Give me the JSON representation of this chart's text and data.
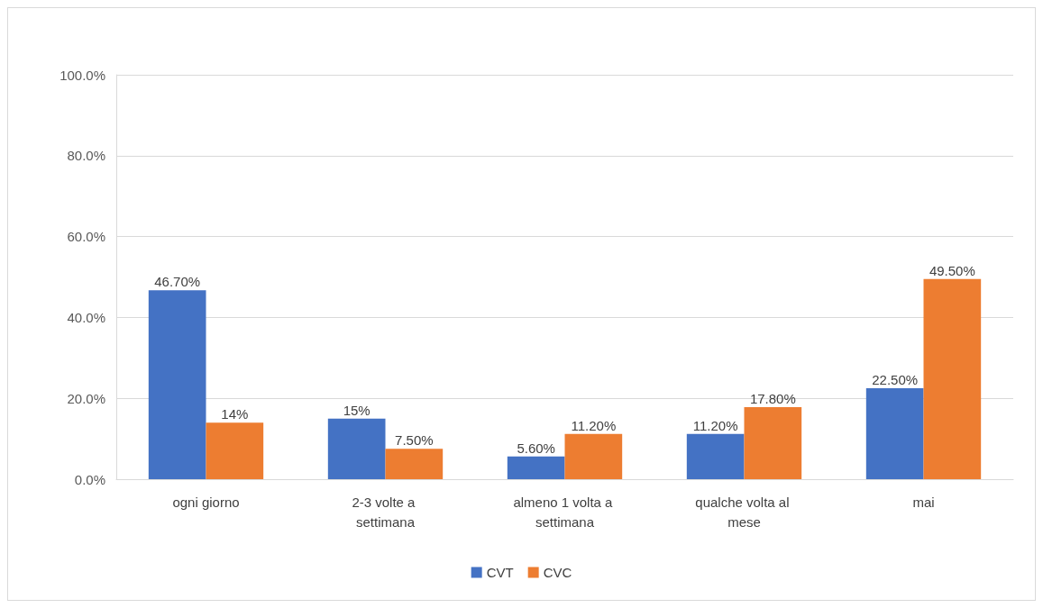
{
  "chart_data": {
    "type": "bar",
    "categories": [
      "ogni giorno",
      "2-3 volte a settimana",
      "almeno 1 volta a settimana",
      "qualche volta al mese",
      "mai"
    ],
    "series": [
      {
        "name": "CVT",
        "color": "#4472c4",
        "values": [
          46.7,
          15,
          5.6,
          11.2,
          22.5
        ],
        "value_labels": [
          "46.70%",
          "15%",
          "5.60%",
          "11.20%",
          "22.50%"
        ]
      },
      {
        "name": "CVC",
        "color": "#ed7d31",
        "values": [
          14,
          7.5,
          11.2,
          17.8,
          49.5
        ],
        "value_labels": [
          "14%",
          "7.50%",
          "11.20%",
          "17.80%",
          "49.50%"
        ]
      }
    ],
    "ylim": [
      0,
      100
    ],
    "yticks": [
      {
        "value": 0,
        "label": "0.0%"
      },
      {
        "value": 20,
        "label": "20.0%"
      },
      {
        "value": 40,
        "label": "40.0%"
      },
      {
        "value": 60,
        "label": "60.0%"
      },
      {
        "value": 80,
        "label": "80.0%"
      },
      {
        "value": 100,
        "label": "100.0%"
      }
    ],
    "grid": "y",
    "legend": "bottom"
  }
}
